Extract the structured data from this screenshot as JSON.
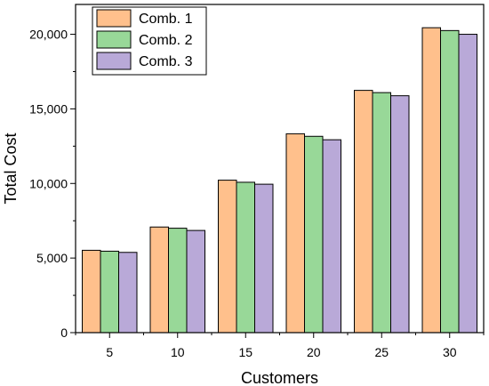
{
  "chart_data": {
    "type": "bar",
    "categories": [
      "5",
      "10",
      "15",
      "20",
      "25",
      "30"
    ],
    "series": [
      {
        "name": "Comb. 1",
        "color": "#ffc08c",
        "values": [
          5520,
          7080,
          10220,
          13330,
          16240,
          20440
        ]
      },
      {
        "name": "Comb. 2",
        "color": "#98d898",
        "values": [
          5460,
          7000,
          10080,
          13160,
          16090,
          20250
        ]
      },
      {
        "name": "Comb. 3",
        "color": "#b9a9d8",
        "values": [
          5380,
          6850,
          9950,
          12930,
          15880,
          20000
        ]
      }
    ],
    "xlabel": "Customers",
    "ylabel": "Total Cost",
    "ylim": [
      0,
      22000
    ],
    "yticks": [
      0,
      5000,
      10000,
      15000,
      20000
    ],
    "ytick_labels": [
      "0",
      "5,000",
      "10,000",
      "15,000",
      "20,000"
    ],
    "legend_position": "top-left",
    "grid": false
  }
}
